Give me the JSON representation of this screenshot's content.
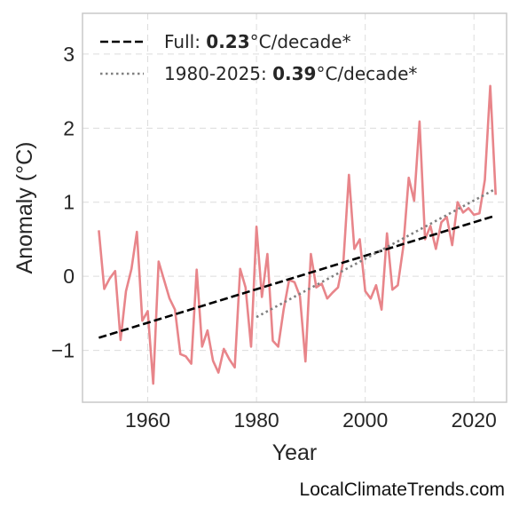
{
  "chart_data": {
    "type": "line",
    "xlabel": "Year",
    "ylabel": "Anomaly (°C)",
    "xlim": [
      1948,
      2026
    ],
    "ylim": [
      -1.7,
      3.55
    ],
    "x_ticks": [
      1960,
      1980,
      2000,
      2020
    ],
    "y_ticks": [
      -1,
      0,
      1,
      2,
      3
    ],
    "y_tick_labels": [
      "−1",
      "0",
      "1",
      "2",
      "3"
    ],
    "grid": true,
    "legend_position": "top-left",
    "series": [
      {
        "style": "line",
        "color": "#e8858a",
        "x": [
          1951,
          1952,
          1953,
          1954,
          1955,
          1956,
          1957,
          1958,
          1959,
          1960,
          1961,
          1962,
          1963,
          1964,
          1965,
          1966,
          1967,
          1968,
          1969,
          1970,
          1971,
          1972,
          1973,
          1974,
          1975,
          1976,
          1977,
          1978,
          1979,
          1980,
          1981,
          1982,
          1983,
          1984,
          1985,
          1986,
          1987,
          1988,
          1989,
          1990,
          1991,
          1992,
          1993,
          1994,
          1995,
          1996,
          1997,
          1998,
          1999,
          2000,
          2001,
          2002,
          2003,
          2004,
          2005,
          2006,
          2007,
          2008,
          2009,
          2010,
          2011,
          2012,
          2013,
          2014,
          2015,
          2016,
          2017,
          2018,
          2019,
          2020,
          2021,
          2022,
          2023,
          2024
        ],
        "y": [
          0.62,
          -0.17,
          -0.03,
          0.07,
          -0.86,
          -0.2,
          0.1,
          0.6,
          -0.6,
          -0.47,
          -1.45,
          0.2,
          -0.05,
          -0.3,
          -0.45,
          -1.05,
          -1.08,
          -1.18,
          0.09,
          -0.95,
          -0.73,
          -1.14,
          -1.3,
          -0.98,
          -1.12,
          -1.23,
          0.1,
          -0.15,
          -0.95,
          0.67,
          -0.28,
          0.3,
          -0.87,
          -0.95,
          -0.45,
          -0.05,
          -0.08,
          -0.27,
          -1.15,
          0.3,
          -0.15,
          -0.1,
          -0.3,
          -0.22,
          -0.15,
          0.22,
          1.37,
          0.37,
          0.5,
          -0.2,
          -0.3,
          -0.12,
          -0.45,
          0.58,
          -0.18,
          -0.12,
          0.4,
          1.33,
          1.02,
          2.09,
          0.5,
          0.68,
          0.37,
          0.73,
          0.8,
          0.42,
          1.0,
          0.86,
          0.92,
          0.83,
          0.85,
          1.3,
          2.57,
          1.1
        ]
      },
      {
        "name": "Full: 0.23°C/decade*",
        "style": "dashed",
        "color": "#000000",
        "x": [
          1951,
          2024
        ],
        "y": [
          -0.83,
          0.82
        ]
      },
      {
        "name": "1980-2025: 0.39°C/decade*",
        "style": "dotted",
        "color": "#808080",
        "x": [
          1980,
          2024
        ],
        "y": [
          -0.55,
          1.18
        ]
      }
    ],
    "legend": [
      {
        "prefix": "Full: ",
        "value": "0.23",
        "suffix": "°C/decade*",
        "style": "dashed",
        "color": "#000000"
      },
      {
        "prefix": "1980-2025: ",
        "value": "0.39",
        "suffix": "°C/decade*",
        "style": "dotted",
        "color": "#808080"
      }
    ]
  },
  "watermark": "LocalClimateTrends.com"
}
